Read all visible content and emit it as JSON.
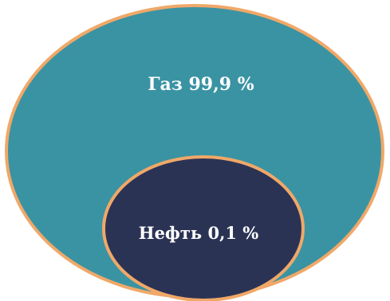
{
  "diagram": {
    "outer": {
      "label": "Газ 99,9 %",
      "value_percent": 99.9,
      "fill_color": "#3a93a3",
      "stroke_color": "#f0a868"
    },
    "inner": {
      "label": "Нефть 0,1 %",
      "value_percent": 0.1,
      "fill_color": "#2b3355",
      "stroke_color": "#f0a868"
    }
  }
}
